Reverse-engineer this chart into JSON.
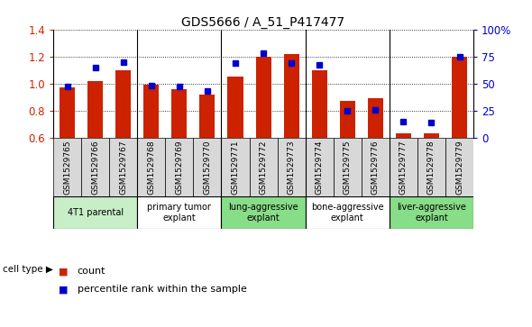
{
  "title": "GDS5666 / A_51_P417477",
  "samples": [
    "GSM1529765",
    "GSM1529766",
    "GSM1529767",
    "GSM1529768",
    "GSM1529769",
    "GSM1529770",
    "GSM1529771",
    "GSM1529772",
    "GSM1529773",
    "GSM1529774",
    "GSM1529775",
    "GSM1529776",
    "GSM1529777",
    "GSM1529778",
    "GSM1529779"
  ],
  "counts": [
    0.975,
    1.02,
    1.1,
    0.99,
    0.96,
    0.92,
    1.05,
    1.2,
    1.22,
    1.1,
    0.87,
    0.895,
    0.635,
    0.635,
    1.2
  ],
  "percentiles": [
    47,
    65,
    70,
    48,
    47,
    43,
    69,
    78,
    69,
    67,
    25,
    26,
    15,
    14,
    75
  ],
  "groups": [
    {
      "label": "4T1 parental",
      "start": 0,
      "end": 3,
      "color": "#c8eec8"
    },
    {
      "label": "primary tumor\nexplant",
      "start": 3,
      "end": 6,
      "color": "#ffffff"
    },
    {
      "label": "lung-aggressive\nexplant",
      "start": 6,
      "end": 9,
      "color": "#88dd88"
    },
    {
      "label": "bone-aggressive\nexplant",
      "start": 9,
      "end": 12,
      "color": "#ffffff"
    },
    {
      "label": "liver-aggressive\nexplant",
      "start": 12,
      "end": 15,
      "color": "#88dd88"
    }
  ],
  "bar_color": "#cc2200",
  "dot_color": "#0000cc",
  "ylim_left": [
    0.6,
    1.4
  ],
  "ylim_right": [
    0,
    100
  ],
  "yticks_left": [
    0.6,
    0.8,
    1.0,
    1.2,
    1.4
  ],
  "yticks_right": [
    0,
    25,
    50,
    75,
    100
  ],
  "ytick_labels_right": [
    "0",
    "25",
    "50",
    "75",
    "100%"
  ],
  "background_color": "#ffffff",
  "bar_width": 0.55,
  "cell_type_label": "cell type",
  "legend_count": "count",
  "legend_percentile": "percentile rank within the sample",
  "sample_box_color": "#d8d8d8"
}
